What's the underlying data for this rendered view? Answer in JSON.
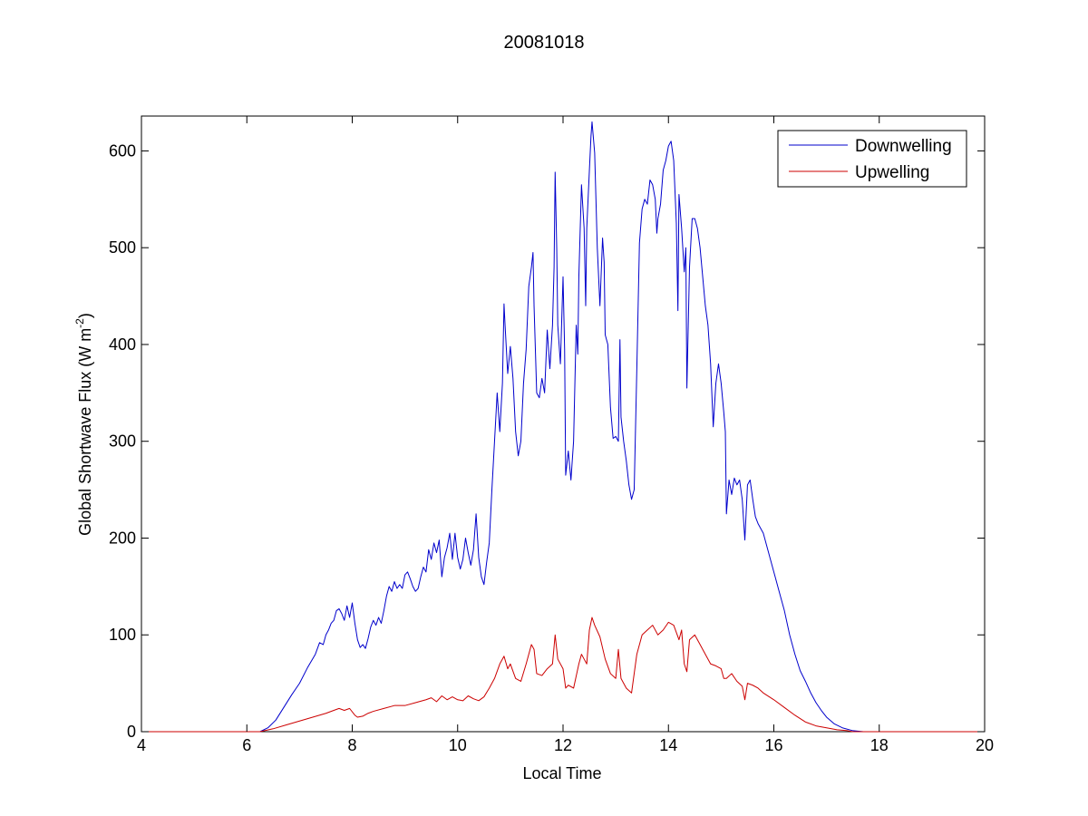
{
  "chart_data": {
    "type": "line",
    "title": "20081018",
    "xlabel": "Local Time",
    "ylabel_main": "Global Shortwave Flux (W m",
    "ylabel_sup": "-2",
    "ylabel_close": ")",
    "xlim": [
      4,
      20
    ],
    "ylim": [
      0,
      636
    ],
    "xticks": [
      4,
      6,
      8,
      10,
      12,
      14,
      16,
      18,
      20
    ],
    "yticks": [
      0,
      100,
      200,
      300,
      400,
      500,
      600
    ],
    "grid": false,
    "legend_position": "top-right",
    "series": [
      {
        "name": "Downwelling",
        "color": "#0000cc",
        "points": [
          [
            4.0,
            0
          ],
          [
            6.0,
            0
          ],
          [
            6.25,
            0
          ],
          [
            6.4,
            4
          ],
          [
            6.55,
            12
          ],
          [
            6.7,
            25
          ],
          [
            6.85,
            38
          ],
          [
            7.0,
            50
          ],
          [
            7.15,
            66
          ],
          [
            7.3,
            80
          ],
          [
            7.38,
            92
          ],
          [
            7.45,
            90
          ],
          [
            7.5,
            100
          ],
          [
            7.55,
            105
          ],
          [
            7.6,
            112
          ],
          [
            7.65,
            115
          ],
          [
            7.7,
            125
          ],
          [
            7.75,
            127
          ],
          [
            7.8,
            122
          ],
          [
            7.85,
            115
          ],
          [
            7.9,
            130
          ],
          [
            7.95,
            118
          ],
          [
            8.0,
            133
          ],
          [
            8.05,
            112
          ],
          [
            8.1,
            95
          ],
          [
            8.15,
            87
          ],
          [
            8.2,
            90
          ],
          [
            8.25,
            86
          ],
          [
            8.3,
            96
          ],
          [
            8.35,
            108
          ],
          [
            8.4,
            115
          ],
          [
            8.45,
            110
          ],
          [
            8.5,
            118
          ],
          [
            8.55,
            112
          ],
          [
            8.6,
            125
          ],
          [
            8.65,
            140
          ],
          [
            8.7,
            150
          ],
          [
            8.75,
            145
          ],
          [
            8.8,
            155
          ],
          [
            8.85,
            148
          ],
          [
            8.9,
            152
          ],
          [
            8.95,
            148
          ],
          [
            9.0,
            162
          ],
          [
            9.05,
            165
          ],
          [
            9.1,
            158
          ],
          [
            9.15,
            150
          ],
          [
            9.2,
            145
          ],
          [
            9.25,
            148
          ],
          [
            9.3,
            160
          ],
          [
            9.35,
            170
          ],
          [
            9.4,
            165
          ],
          [
            9.45,
            188
          ],
          [
            9.5,
            178
          ],
          [
            9.55,
            195
          ],
          [
            9.6,
            185
          ],
          [
            9.65,
            198
          ],
          [
            9.7,
            160
          ],
          [
            9.75,
            180
          ],
          [
            9.8,
            190
          ],
          [
            9.85,
            205
          ],
          [
            9.9,
            178
          ],
          [
            9.95,
            205
          ],
          [
            10.0,
            180
          ],
          [
            10.05,
            168
          ],
          [
            10.1,
            178
          ],
          [
            10.15,
            200
          ],
          [
            10.2,
            185
          ],
          [
            10.25,
            172
          ],
          [
            10.3,
            188
          ],
          [
            10.35,
            225
          ],
          [
            10.4,
            180
          ],
          [
            10.45,
            160
          ],
          [
            10.5,
            152
          ],
          [
            10.55,
            175
          ],
          [
            10.6,
            195
          ],
          [
            10.65,
            250
          ],
          [
            10.7,
            300
          ],
          [
            10.75,
            350
          ],
          [
            10.8,
            310
          ],
          [
            10.85,
            360
          ],
          [
            10.88,
            442
          ],
          [
            10.9,
            420
          ],
          [
            10.95,
            370
          ],
          [
            11.0,
            398
          ],
          [
            11.05,
            365
          ],
          [
            11.1,
            310
          ],
          [
            11.15,
            285
          ],
          [
            11.2,
            300
          ],
          [
            11.25,
            360
          ],
          [
            11.3,
            395
          ],
          [
            11.35,
            460
          ],
          [
            11.4,
            480
          ],
          [
            11.43,
            495
          ],
          [
            11.45,
            440
          ],
          [
            11.5,
            350
          ],
          [
            11.55,
            345
          ],
          [
            11.6,
            365
          ],
          [
            11.65,
            350
          ],
          [
            11.7,
            415
          ],
          [
            11.75,
            375
          ],
          [
            11.8,
            420
          ],
          [
            11.83,
            480
          ],
          [
            11.85,
            578
          ],
          [
            11.88,
            500
          ],
          [
            11.9,
            420
          ],
          [
            11.95,
            380
          ],
          [
            12.0,
            470
          ],
          [
            12.03,
            395
          ],
          [
            12.05,
            265
          ],
          [
            12.1,
            290
          ],
          [
            12.15,
            260
          ],
          [
            12.2,
            300
          ],
          [
            12.25,
            420
          ],
          [
            12.28,
            390
          ],
          [
            12.3,
            470
          ],
          [
            12.35,
            565
          ],
          [
            12.4,
            520
          ],
          [
            12.43,
            440
          ],
          [
            12.45,
            520
          ],
          [
            12.5,
            580
          ],
          [
            12.53,
            615
          ],
          [
            12.55,
            630
          ],
          [
            12.6,
            598
          ],
          [
            12.65,
            500
          ],
          [
            12.7,
            440
          ],
          [
            12.75,
            510
          ],
          [
            12.78,
            485
          ],
          [
            12.8,
            410
          ],
          [
            12.85,
            400
          ],
          [
            12.9,
            335
          ],
          [
            12.95,
            303
          ],
          [
            13.0,
            305
          ],
          [
            13.05,
            300
          ],
          [
            13.08,
            405
          ],
          [
            13.1,
            325
          ],
          [
            13.15,
            300
          ],
          [
            13.2,
            280
          ],
          [
            13.25,
            255
          ],
          [
            13.3,
            240
          ],
          [
            13.35,
            250
          ],
          [
            13.4,
            375
          ],
          [
            13.45,
            505
          ],
          [
            13.5,
            540
          ],
          [
            13.55,
            550
          ],
          [
            13.6,
            545
          ],
          [
            13.65,
            570
          ],
          [
            13.7,
            565
          ],
          [
            13.75,
            550
          ],
          [
            13.78,
            515
          ],
          [
            13.8,
            530
          ],
          [
            13.85,
            545
          ],
          [
            13.9,
            580
          ],
          [
            13.95,
            590
          ],
          [
            14.0,
            605
          ],
          [
            14.05,
            610
          ],
          [
            14.1,
            590
          ],
          [
            14.15,
            525
          ],
          [
            14.18,
            435
          ],
          [
            14.2,
            555
          ],
          [
            14.25,
            520
          ],
          [
            14.3,
            475
          ],
          [
            14.33,
            500
          ],
          [
            14.35,
            355
          ],
          [
            14.4,
            480
          ],
          [
            14.45,
            530
          ],
          [
            14.5,
            530
          ],
          [
            14.55,
            520
          ],
          [
            14.6,
            500
          ],
          [
            14.65,
            470
          ],
          [
            14.7,
            440
          ],
          [
            14.75,
            420
          ],
          [
            14.8,
            380
          ],
          [
            14.85,
            315
          ],
          [
            14.9,
            360
          ],
          [
            14.95,
            380
          ],
          [
            15.0,
            360
          ],
          [
            15.05,
            330
          ],
          [
            15.08,
            310
          ],
          [
            15.1,
            225
          ],
          [
            15.15,
            260
          ],
          [
            15.2,
            245
          ],
          [
            15.25,
            262
          ],
          [
            15.3,
            255
          ],
          [
            15.35,
            260
          ],
          [
            15.4,
            240
          ],
          [
            15.45,
            198
          ],
          [
            15.5,
            255
          ],
          [
            15.55,
            260
          ],
          [
            15.6,
            240
          ],
          [
            15.65,
            222
          ],
          [
            15.7,
            215
          ],
          [
            15.8,
            205
          ],
          [
            15.9,
            185
          ],
          [
            16.0,
            165
          ],
          [
            16.1,
            145
          ],
          [
            16.2,
            125
          ],
          [
            16.3,
            100
          ],
          [
            16.4,
            80
          ],
          [
            16.5,
            63
          ],
          [
            16.6,
            52
          ],
          [
            16.7,
            40
          ],
          [
            16.8,
            30
          ],
          [
            16.9,
            22
          ],
          [
            17.0,
            15
          ],
          [
            17.15,
            8
          ],
          [
            17.3,
            4
          ],
          [
            17.5,
            1
          ],
          [
            17.7,
            0
          ],
          [
            20.0,
            0
          ]
        ]
      },
      {
        "name": "Upwelling",
        "color": "#cc0000",
        "points": [
          [
            4.0,
            0
          ],
          [
            6.0,
            0
          ],
          [
            6.25,
            0
          ],
          [
            6.5,
            3
          ],
          [
            6.75,
            7
          ],
          [
            7.0,
            11
          ],
          [
            7.25,
            15
          ],
          [
            7.5,
            19
          ],
          [
            7.65,
            22
          ],
          [
            7.75,
            24
          ],
          [
            7.85,
            22
          ],
          [
            7.95,
            24
          ],
          [
            8.05,
            17
          ],
          [
            8.1,
            15
          ],
          [
            8.2,
            16
          ],
          [
            8.3,
            19
          ],
          [
            8.4,
            21
          ],
          [
            8.6,
            24
          ],
          [
            8.8,
            27
          ],
          [
            9.0,
            27
          ],
          [
            9.2,
            30
          ],
          [
            9.4,
            33
          ],
          [
            9.5,
            35
          ],
          [
            9.6,
            31
          ],
          [
            9.7,
            37
          ],
          [
            9.8,
            33
          ],
          [
            9.9,
            36
          ],
          [
            10.0,
            33
          ],
          [
            10.1,
            32
          ],
          [
            10.2,
            37
          ],
          [
            10.3,
            34
          ],
          [
            10.4,
            32
          ],
          [
            10.5,
            36
          ],
          [
            10.6,
            45
          ],
          [
            10.7,
            55
          ],
          [
            10.8,
            70
          ],
          [
            10.88,
            78
          ],
          [
            10.95,
            65
          ],
          [
            11.0,
            70
          ],
          [
            11.1,
            55
          ],
          [
            11.2,
            52
          ],
          [
            11.3,
            70
          ],
          [
            11.4,
            90
          ],
          [
            11.45,
            85
          ],
          [
            11.5,
            60
          ],
          [
            11.6,
            58
          ],
          [
            11.7,
            65
          ],
          [
            11.8,
            70
          ],
          [
            11.85,
            100
          ],
          [
            11.9,
            75
          ],
          [
            12.0,
            65
          ],
          [
            12.05,
            45
          ],
          [
            12.1,
            48
          ],
          [
            12.2,
            45
          ],
          [
            12.3,
            70
          ],
          [
            12.35,
            80
          ],
          [
            12.4,
            75
          ],
          [
            12.45,
            70
          ],
          [
            12.5,
            105
          ],
          [
            12.55,
            118
          ],
          [
            12.6,
            110
          ],
          [
            12.7,
            98
          ],
          [
            12.8,
            75
          ],
          [
            12.9,
            60
          ],
          [
            13.0,
            55
          ],
          [
            13.05,
            85
          ],
          [
            13.1,
            55
          ],
          [
            13.2,
            45
          ],
          [
            13.3,
            40
          ],
          [
            13.4,
            80
          ],
          [
            13.5,
            100
          ],
          [
            13.6,
            105
          ],
          [
            13.7,
            110
          ],
          [
            13.8,
            100
          ],
          [
            13.9,
            105
          ],
          [
            14.0,
            113
          ],
          [
            14.1,
            110
          ],
          [
            14.2,
            95
          ],
          [
            14.25,
            105
          ],
          [
            14.3,
            70
          ],
          [
            14.35,
            62
          ],
          [
            14.4,
            95
          ],
          [
            14.5,
            100
          ],
          [
            14.6,
            90
          ],
          [
            14.7,
            80
          ],
          [
            14.8,
            70
          ],
          [
            14.9,
            68
          ],
          [
            15.0,
            65
          ],
          [
            15.05,
            55
          ],
          [
            15.1,
            55
          ],
          [
            15.2,
            60
          ],
          [
            15.3,
            52
          ],
          [
            15.4,
            47
          ],
          [
            15.45,
            33
          ],
          [
            15.5,
            50
          ],
          [
            15.6,
            48
          ],
          [
            15.7,
            45
          ],
          [
            15.8,
            40
          ],
          [
            16.0,
            33
          ],
          [
            16.2,
            25
          ],
          [
            16.4,
            17
          ],
          [
            16.6,
            10
          ],
          [
            16.8,
            6
          ],
          [
            17.0,
            4
          ],
          [
            17.2,
            2
          ],
          [
            17.4,
            1
          ],
          [
            17.5,
            0
          ],
          [
            20.0,
            0
          ]
        ]
      }
    ]
  }
}
